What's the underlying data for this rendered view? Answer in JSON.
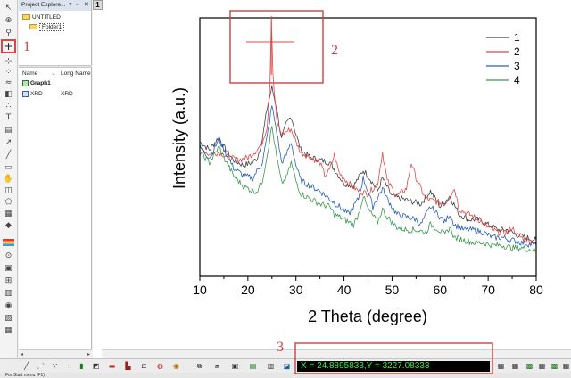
{
  "explorer": {
    "title": "Project Explore...",
    "root": "UNTITLED",
    "folder": "Folder1",
    "col_name": "Name",
    "col_long_name": "Long Name",
    "items": [
      {
        "name": "Graph1",
        "long_name": "",
        "icon": "graph-icon"
      },
      {
        "name": "XRD",
        "long_name": "XRD",
        "icon": "workbook-icon"
      }
    ]
  },
  "workspace": {
    "window_number": "1"
  },
  "readout": {
    "text": "X = 24.8895833,Y = 3227.08333"
  },
  "status": {
    "text": "For Start menu (F1)"
  },
  "annotations": {
    "crosshair_tool": "1",
    "data_cursor": "2",
    "coordinate_box": "3"
  },
  "colors": {
    "annotation": "#d04040",
    "readout_bg": "#000000",
    "readout_fg": "#3bea3b"
  },
  "chart_data": {
    "type": "line",
    "title": "",
    "xlabel": "2 Theta (degree)",
    "ylabel": "Intensity (a.u.)",
    "xlim": [
      10,
      80
    ],
    "ylim": [
      0,
      100
    ],
    "xticks": [
      10,
      20,
      30,
      40,
      50,
      60,
      70,
      80
    ],
    "show_y_ticks": false,
    "legend_position": "top-right",
    "cursor": {
      "x": 24.89
    },
    "series": [
      {
        "name": "1",
        "color": "#404040",
        "points": [
          [
            10,
            52
          ],
          [
            12,
            49
          ],
          [
            14,
            54
          ],
          [
            15,
            50
          ],
          [
            17,
            45
          ],
          [
            19,
            43
          ],
          [
            21,
            44
          ],
          [
            22,
            46
          ],
          [
            23,
            53
          ],
          [
            24,
            65
          ],
          [
            25,
            73
          ],
          [
            26,
            65
          ],
          [
            27,
            53
          ],
          [
            28,
            59
          ],
          [
            29,
            62
          ],
          [
            30,
            55
          ],
          [
            31,
            49
          ],
          [
            33,
            46
          ],
          [
            35,
            45
          ],
          [
            37,
            44
          ],
          [
            40,
            36
          ],
          [
            42,
            35
          ],
          [
            44,
            41
          ],
          [
            45,
            39
          ],
          [
            47,
            33
          ],
          [
            48,
            38
          ],
          [
            50,
            31
          ],
          [
            52,
            30
          ],
          [
            54,
            29
          ],
          [
            56,
            28
          ],
          [
            58,
            33
          ],
          [
            60,
            27
          ],
          [
            62,
            31
          ],
          [
            64,
            24
          ],
          [
            66,
            22
          ],
          [
            68,
            22
          ],
          [
            70,
            20
          ],
          [
            72,
            18
          ],
          [
            74,
            18
          ],
          [
            76,
            16
          ],
          [
            78,
            15
          ],
          [
            80,
            14
          ]
        ]
      },
      {
        "name": "2",
        "color": "#e04848",
        "points": [
          [
            10,
            50
          ],
          [
            12,
            47
          ],
          [
            14,
            48
          ],
          [
            16,
            46
          ],
          [
            18,
            45
          ],
          [
            20,
            46
          ],
          [
            22,
            49
          ],
          [
            23,
            52
          ],
          [
            24,
            58
          ],
          [
            24.6,
            75
          ],
          [
            24.9,
            100
          ],
          [
            25.2,
            78
          ],
          [
            26,
            60
          ],
          [
            27,
            55
          ],
          [
            28,
            56
          ],
          [
            29,
            57
          ],
          [
            30,
            52
          ],
          [
            31,
            48
          ],
          [
            33,
            46
          ],
          [
            35,
            44
          ],
          [
            36,
            39
          ],
          [
            37,
            41
          ],
          [
            38,
            47
          ],
          [
            39,
            40
          ],
          [
            41,
            36
          ],
          [
            43,
            33
          ],
          [
            45,
            32
          ],
          [
            47,
            36
          ],
          [
            48,
            48
          ],
          [
            49,
            37
          ],
          [
            51,
            31
          ],
          [
            53,
            34
          ],
          [
            54,
            44
          ],
          [
            55,
            38
          ],
          [
            57,
            30
          ],
          [
            59,
            29
          ],
          [
            61,
            28
          ],
          [
            62,
            31
          ],
          [
            63,
            34
          ],
          [
            64,
            26
          ],
          [
            66,
            24
          ],
          [
            68,
            22
          ],
          [
            70,
            19
          ],
          [
            72,
            17
          ],
          [
            74,
            17
          ],
          [
            75,
            19
          ],
          [
            76,
            16
          ],
          [
            78,
            14
          ],
          [
            80,
            13
          ]
        ]
      },
      {
        "name": "3",
        "color": "#2b5fb8",
        "points": [
          [
            10,
            50
          ],
          [
            12,
            46
          ],
          [
            14,
            53
          ],
          [
            15,
            49
          ],
          [
            17,
            42
          ],
          [
            19,
            39
          ],
          [
            21,
            38
          ],
          [
            23,
            44
          ],
          [
            24,
            54
          ],
          [
            25,
            66
          ],
          [
            26,
            56
          ],
          [
            27,
            44
          ],
          [
            28,
            47
          ],
          [
            29,
            52
          ],
          [
            30,
            43
          ],
          [
            31,
            37
          ],
          [
            33,
            35
          ],
          [
            35,
            33
          ],
          [
            37,
            30
          ],
          [
            39,
            27
          ],
          [
            41,
            24
          ],
          [
            43,
            30
          ],
          [
            44,
            38
          ],
          [
            45,
            33
          ],
          [
            46,
            27
          ],
          [
            48,
            34
          ],
          [
            49,
            30
          ],
          [
            51,
            24
          ],
          [
            53,
            23
          ],
          [
            55,
            22
          ],
          [
            56,
            20
          ],
          [
            58,
            27
          ],
          [
            59,
            25
          ],
          [
            61,
            21
          ],
          [
            62,
            24
          ],
          [
            63,
            20
          ],
          [
            65,
            18
          ],
          [
            67,
            18
          ],
          [
            69,
            17
          ],
          [
            71,
            15
          ],
          [
            73,
            15
          ],
          [
            75,
            14
          ],
          [
            77,
            13
          ],
          [
            80,
            12
          ]
        ]
      },
      {
        "name": "4",
        "color": "#3a9a50",
        "points": [
          [
            10,
            48
          ],
          [
            12,
            44
          ],
          [
            14,
            50
          ],
          [
            15,
            46
          ],
          [
            17,
            39
          ],
          [
            19,
            35
          ],
          [
            21,
            33
          ],
          [
            22,
            33
          ],
          [
            23,
            37
          ],
          [
            24,
            47
          ],
          [
            25,
            58
          ],
          [
            26,
            46
          ],
          [
            27,
            36
          ],
          [
            28,
            38
          ],
          [
            29,
            44
          ],
          [
            30,
            37
          ],
          [
            31,
            32
          ],
          [
            33,
            30
          ],
          [
            35,
            28
          ],
          [
            37,
            27
          ],
          [
            38,
            24
          ],
          [
            40,
            22
          ],
          [
            42,
            20
          ],
          [
            43,
            24
          ],
          [
            44,
            31
          ],
          [
            45,
            26
          ],
          [
            47,
            21
          ],
          [
            48,
            26
          ],
          [
            49,
            23
          ],
          [
            51,
            19
          ],
          [
            53,
            18
          ],
          [
            55,
            18
          ],
          [
            57,
            17
          ],
          [
            58,
            20
          ],
          [
            59,
            19
          ],
          [
            61,
            16
          ],
          [
            62,
            19
          ],
          [
            63,
            15
          ],
          [
            65,
            14
          ],
          [
            67,
            13
          ],
          [
            69,
            13
          ],
          [
            71,
            12
          ],
          [
            73,
            12
          ],
          [
            75,
            11
          ],
          [
            77,
            11
          ],
          [
            80,
            10
          ]
        ]
      }
    ]
  }
}
